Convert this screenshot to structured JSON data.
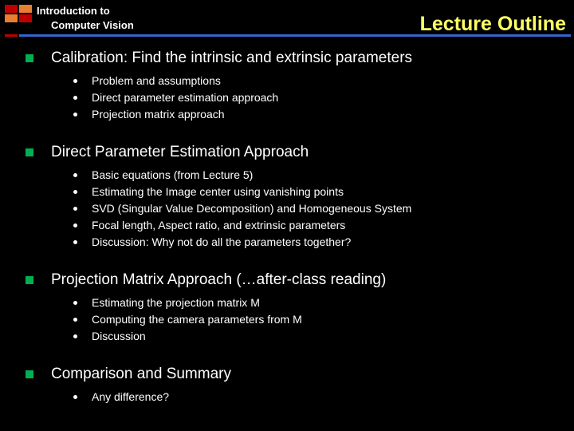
{
  "header": {
    "line1": "Introduction to",
    "line2": "Computer Vision",
    "title": "Lecture Outline",
    "title_color": "#ffff66",
    "logo_colors": {
      "r1c1": "#c00000",
      "r1c2": "#e97e32",
      "r2c1": "#e97e32",
      "r2c2": "#c00000"
    },
    "rule_left_color": "#c00000",
    "rule_main_color": "#3366cc"
  },
  "bullet_color": "#00b050",
  "sections": [
    {
      "title": "Calibration: Find the intrinsic and extrinsic parameters",
      "items": [
        "Problem and assumptions",
        "Direct parameter estimation approach",
        "Projection matrix approach"
      ]
    },
    {
      "title": "Direct Parameter Estimation Approach",
      "items": [
        "Basic equations (from Lecture 5)",
        "Estimating the Image center using vanishing points",
        "SVD (Singular Value Decomposition) and Homogeneous System",
        "Focal length, Aspect ratio, and extrinsic parameters",
        "Discussion: Why not do all the parameters together?"
      ]
    },
    {
      "title": "Projection Matrix Approach (…after-class reading)",
      "items": [
        "Estimating the projection matrix M",
        "Computing the camera parameters from M",
        "Discussion"
      ]
    },
    {
      "title": "Comparison and Summary",
      "items": [
        "Any difference?"
      ]
    }
  ]
}
